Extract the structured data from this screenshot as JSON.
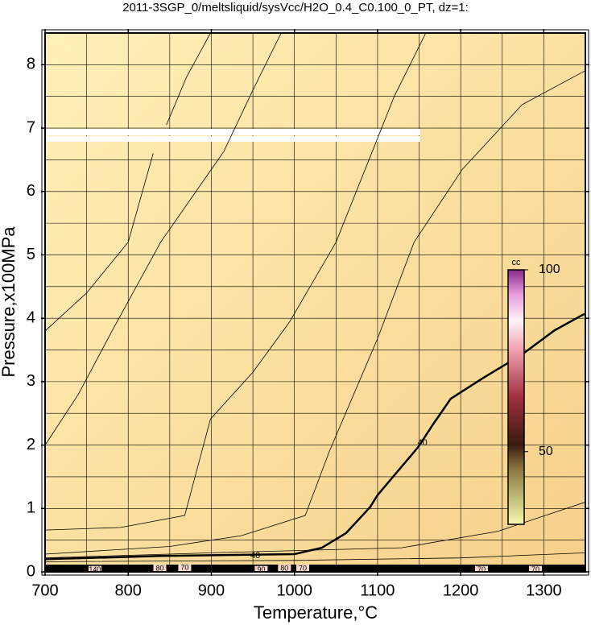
{
  "chart_data": {
    "type": "contour",
    "title": "2011-3SGP_0/meltsliquid/sysVcc/H2O_0.4_C0.100_0_PT, dz=1:",
    "x_label": "Temperature,°C",
    "y_label": "Pressure,x100MPa",
    "xlim": [
      700,
      1350
    ],
    "ylim": [
      0,
      8.5
    ],
    "xticks": [
      700,
      800,
      900,
      1000,
      1100,
      1200,
      1300
    ],
    "yticks": [
      0,
      1,
      2,
      3,
      4,
      5,
      6,
      7,
      8
    ],
    "xgrid": [
      750,
      800,
      850,
      900,
      950,
      1000,
      1050,
      1100,
      1150,
      1200,
      1250,
      1300
    ],
    "ygrid": [
      0.5,
      1,
      1.5,
      2,
      2.5,
      3,
      3.5,
      4,
      4.5,
      5,
      5.5,
      6,
      6.5,
      7,
      7.5,
      8
    ],
    "grid": true,
    "contours": [
      {
        "x": [
          700,
          750,
          800,
          830,
          null,
          846,
          870,
          899
        ],
        "y": [
          3.8,
          4.4,
          5.2,
          6.6,
          null,
          7.05,
          7.8,
          8.5
        ],
        "bold": false
      },
      {
        "x": [
          700,
          740,
          781,
          839,
          915,
          950,
          984
        ],
        "y": [
          2.0,
          2.8,
          3.81,
          5.2,
          6.63,
          7.6,
          8.5
        ],
        "bold": false
      },
      {
        "x": [
          700,
          791,
          868,
          899,
          950,
          994,
          1050,
          1093,
          1120,
          1158
        ],
        "y": [
          0.66,
          0.7,
          0.89,
          2.41,
          3.15,
          3.94,
          5.2,
          6.61,
          7.5,
          8.5
        ],
        "bold": false
      },
      {
        "x": [
          700,
          850,
          936,
          1013,
          1042,
          1100,
          1144,
          1202,
          1274,
          1349
        ],
        "y": [
          0.28,
          0.4,
          0.57,
          0.89,
          1.9,
          3.68,
          5.2,
          6.35,
          7.37,
          7.9
        ],
        "bold": false
      },
      {
        "x": [
          700,
          900,
          1129,
          1245,
          1350
        ],
        "y": [
          0.22,
          0.3,
          0.38,
          0.64,
          1.1
        ],
        "bold": false
      },
      {
        "x": [
          700,
          1000,
          1200,
          1350
        ],
        "y": [
          0.16,
          0.18,
          0.22,
          0.3
        ],
        "bold": false
      },
      {
        "x": [
          700,
          839,
          1000,
          1033,
          1062,
          1091,
          1100,
          1149,
          1168,
          1188,
          1226,
          1274,
          1313,
          1349
        ],
        "y": [
          0.2,
          0.25,
          0.28,
          0.38,
          0.61,
          1.02,
          1.21,
          1.97,
          2.35,
          2.73,
          3.05,
          3.43,
          3.81,
          4.07
        ],
        "bold": true
      }
    ],
    "contour_labels": [
      {
        "text": "40",
        "x": 953,
        "y": 0.25
      },
      {
        "text": "40",
        "x": 1154,
        "y": 2.03
      },
      {
        "text": "140",
        "x": 760,
        "y": 0.03
      },
      {
        "text": "80",
        "x": 838,
        "y": 0.05
      },
      {
        "text": "70",
        "x": 868,
        "y": 0.06
      },
      {
        "text": "90",
        "x": 960,
        "y": 0.03
      },
      {
        "text": "80",
        "x": 988,
        "y": 0.05
      },
      {
        "text": "70",
        "x": 1010,
        "y": 0.05
      },
      {
        "text": "70",
        "x": 1225,
        "y": 0.03
      },
      {
        "text": "70",
        "x": 1290,
        "y": 0.03
      }
    ],
    "colorbar": {
      "label": "cc",
      "clim": [
        30,
        100
      ],
      "ticks": [
        50,
        100
      ],
      "colorscale": [
        [
          30,
          "#f4f8b0"
        ],
        [
          45,
          "#8a7a40"
        ],
        [
          52,
          "#3a1a10"
        ],
        [
          65,
          "#a03040"
        ],
        [
          78,
          "#f0a0b0"
        ],
        [
          86,
          "#fff4f8"
        ],
        [
          93,
          "#e8a0e0"
        ],
        [
          100,
          "#8a2a8a"
        ]
      ]
    }
  }
}
